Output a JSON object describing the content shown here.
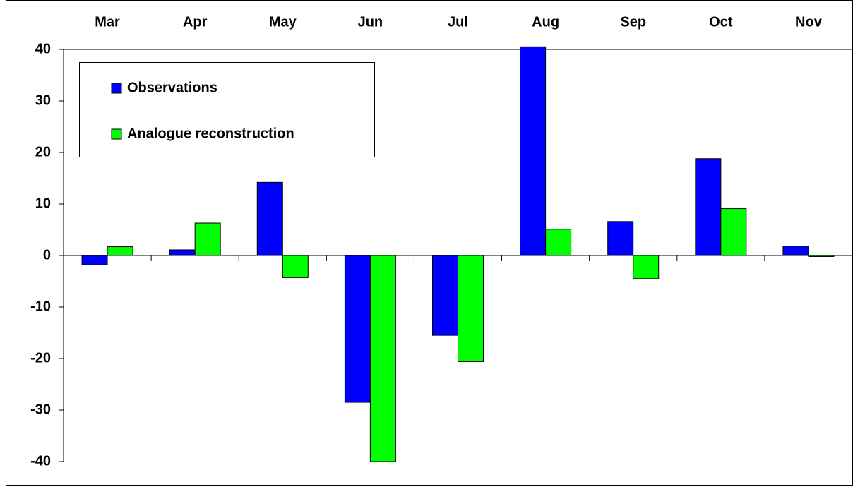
{
  "chart_data": {
    "type": "bar",
    "categories": [
      "Mar",
      "Apr",
      "May",
      "Jun",
      "Jul",
      "Aug",
      "Sep",
      "Oct",
      "Nov"
    ],
    "series": [
      {
        "name": "Observations",
        "color": "#0000ff",
        "values": [
          -1.8,
          1.1,
          14.2,
          -28.5,
          -15.5,
          40.5,
          6.6,
          18.8,
          1.8
        ]
      },
      {
        "name": "Analogue reconstruction",
        "color": "#00ff00",
        "values": [
          1.7,
          6.3,
          -4.3,
          -40,
          -20.6,
          5.1,
          -4.5,
          9.1,
          -0.2
        ]
      }
    ],
    "ylim": [
      -40,
      40
    ],
    "yticks": [
      -40,
      -30,
      -20,
      -10,
      0,
      10,
      20,
      30,
      40
    ],
    "grid": false,
    "legend": "upper left"
  }
}
